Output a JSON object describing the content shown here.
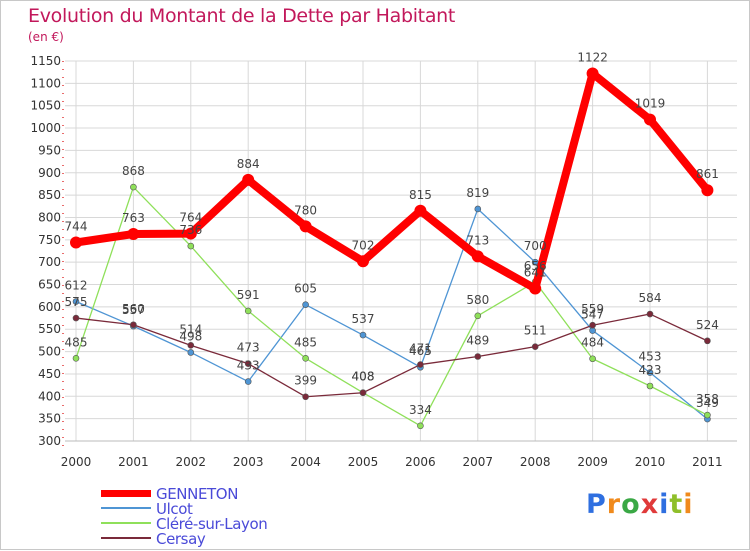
{
  "title": "Evolution du Montant de la Dette par Habitant",
  "unit_label": "(en €)",
  "logo_text": "Proxiti",
  "colors": {
    "title": "#c2185b",
    "grid": "#d8d8d8",
    "axis_text": "#333333",
    "legend_text": "#4a4ad8"
  },
  "chart_data": {
    "type": "line",
    "title": "Evolution du Montant de la Dette par Habitant",
    "ylabel": "(en €)",
    "xlabel": "",
    "x": [
      "2000",
      "2001",
      "2002",
      "2003",
      "2004",
      "2005",
      "2006",
      "2007",
      "2008",
      "2009",
      "2010",
      "2011"
    ],
    "ylim": [
      300,
      1150
    ],
    "yticks": [
      300,
      350,
      400,
      450,
      500,
      550,
      600,
      650,
      700,
      750,
      800,
      850,
      900,
      950,
      1000,
      1050,
      1100,
      1150
    ],
    "grid": true,
    "legend_position": "bottom-left",
    "series": [
      {
        "name": "GENNETON",
        "color": "#ff0000",
        "values": [
          744,
          763,
          764,
          884,
          780,
          702,
          815,
          713,
          641,
          1122,
          1019,
          861
        ],
        "labels": [
          "744",
          "763",
          "764",
          "884",
          "780",
          "702",
          "815",
          "713",
          "641",
          "1122",
          "1019",
          "861"
        ]
      },
      {
        "name": "Ulcot",
        "color": "#4f95d4",
        "values": [
          612,
          557,
          498,
          433,
          605,
          537,
          465,
          819,
          700,
          547,
          453,
          349
        ],
        "labels": [
          "612",
          "557",
          "498",
          "433",
          "605",
          "537",
          "465",
          "819",
          "700",
          "547",
          "453",
          "349"
        ]
      },
      {
        "name": "Cléré-sur-Layon",
        "color": "#8fe05a",
        "values": [
          485,
          868,
          736,
          591,
          485,
          408,
          334,
          580,
          656,
          484,
          423,
          358
        ],
        "labels": [
          "485",
          "868",
          "736",
          "591",
          "485",
          "408",
          "334",
          "580",
          "656",
          "484",
          "423",
          "358"
        ]
      },
      {
        "name": "Cersay",
        "color": "#7a2a3a",
        "values": [
          575,
          560,
          514,
          473,
          399,
          408,
          471,
          489,
          511,
          559,
          584,
          524
        ],
        "labels": [
          "575",
          "560",
          "514",
          "473",
          "399",
          "408",
          "471",
          "489",
          "511",
          "559",
          "584",
          "524"
        ]
      }
    ]
  }
}
